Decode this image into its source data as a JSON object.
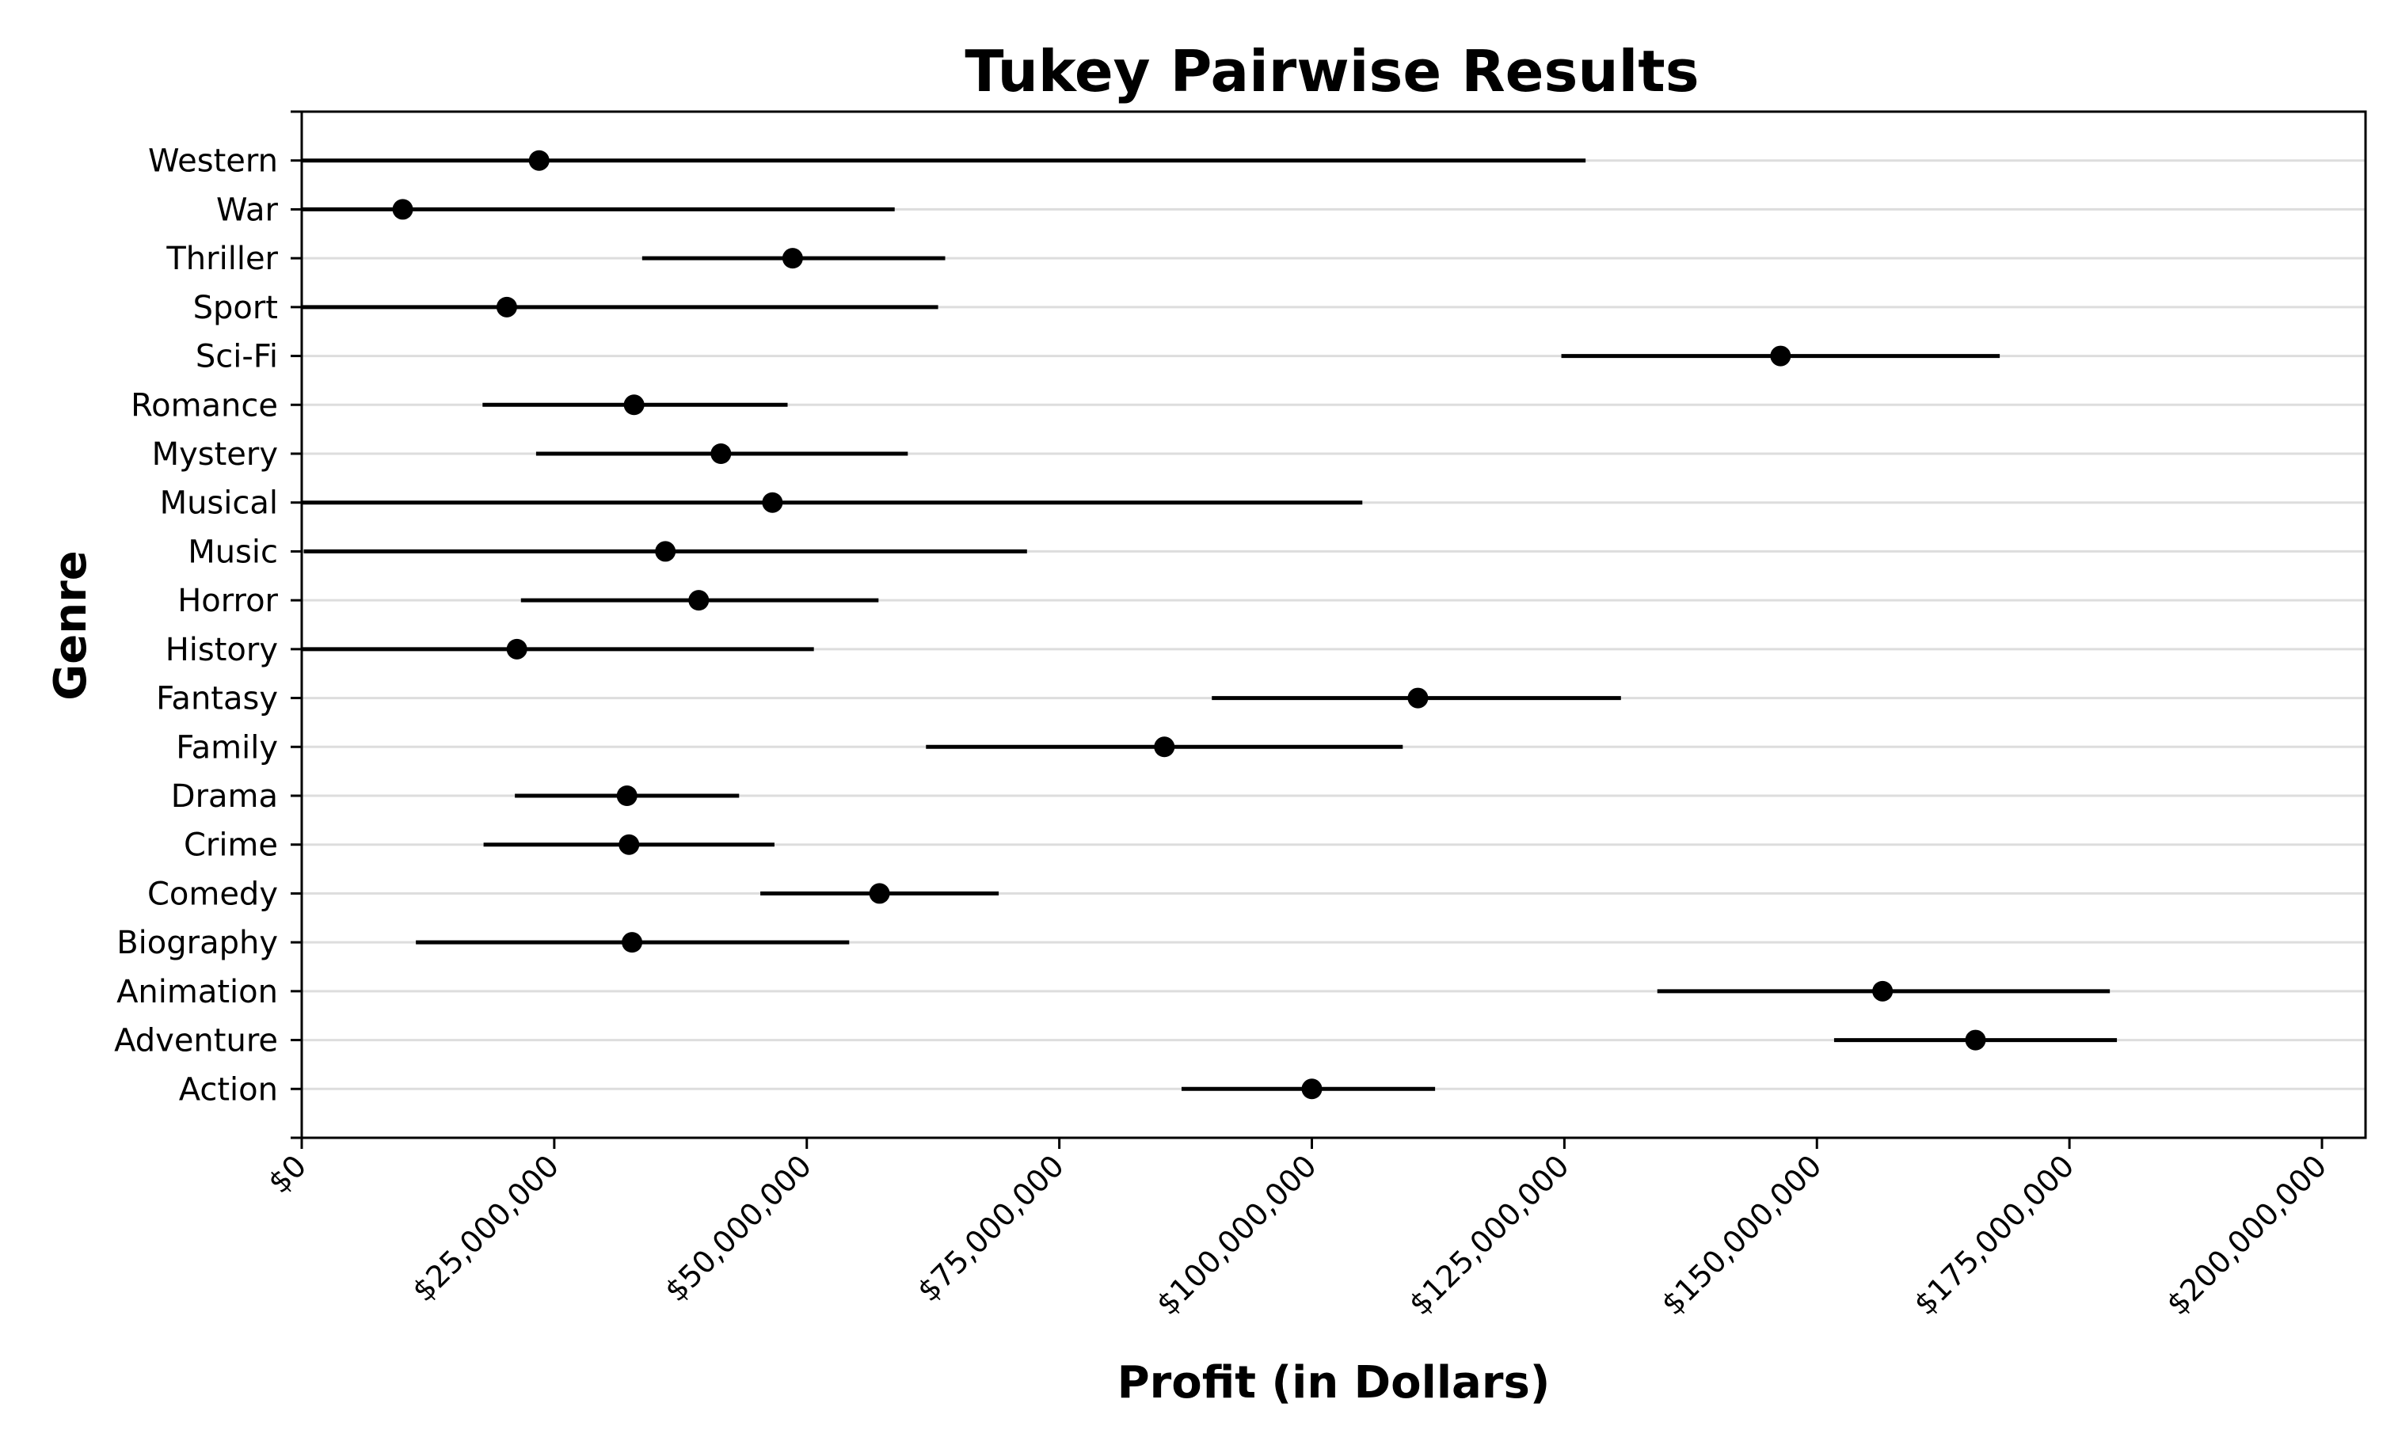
{
  "chart_data": {
    "type": "scatter",
    "title": "Tukey Pairwise Results",
    "xlabel": "Profit (in Dollars)",
    "ylabel": "Genre",
    "xlim": [
      0,
      205000000
    ],
    "xticks": [
      0,
      25000000,
      50000000,
      75000000,
      100000000,
      125000000,
      150000000,
      175000000,
      200000000
    ],
    "xtick_labels": [
      "$0",
      "$25,000,000",
      "$50,000,000",
      "$75,000,000",
      "$100,000,000",
      "$125,000,000",
      "$150,000,000",
      "$175,000,000",
      "$200,000,000"
    ],
    "grid": "horizontal",
    "marker_color": "#000000",
    "genres": [
      "Action",
      "Adventure",
      "Animation",
      "Biography",
      "Comedy",
      "Crime",
      "Drama",
      "Family",
      "Fantasy",
      "History",
      "Horror",
      "Music",
      "Musical",
      "Mystery",
      "Romance",
      "Sci-Fi",
      "Sport",
      "Thriller",
      "War",
      "Western"
    ],
    "means": [
      100000000,
      165700000,
      156500000,
      32700000,
      57200000,
      32400000,
      32200000,
      85400000,
      110500000,
      21300000,
      39300000,
      36000000,
      46600000,
      41500000,
      32900000,
      146400000,
      20300000,
      48600000,
      10000000,
      23500000
    ],
    "lower": [
      87100000,
      151700000,
      134200000,
      11300000,
      45400000,
      18000000,
      21100000,
      61800000,
      90100000,
      0,
      21700000,
      200000,
      0,
      23200000,
      17900000,
      124700000,
      0,
      33700000,
      0,
      0
    ],
    "upper": [
      112200000,
      179700000,
      179000000,
      54200000,
      69000000,
      46800000,
      43300000,
      109000000,
      130600000,
      50700000,
      57100000,
      71800000,
      105000000,
      60000000,
      48100000,
      168100000,
      63000000,
      63700000,
      58700000,
      127100000
    ]
  }
}
